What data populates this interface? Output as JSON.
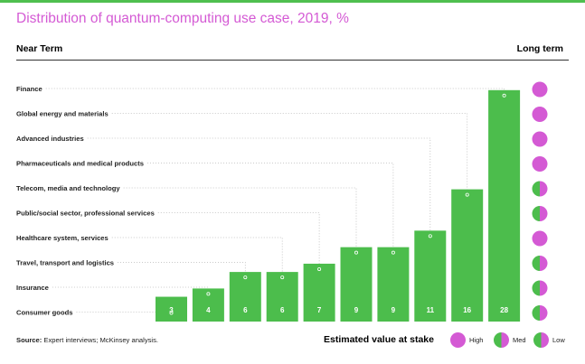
{
  "title": "Distribution of quantum-computing use case, 2019, %",
  "header": {
    "left": "Near Term",
    "right": "Long term"
  },
  "colors": {
    "bar": "#4cbd4c",
    "accent": "#d45ad4",
    "high": "#d45ad4",
    "green": "#4cbd4c"
  },
  "source": {
    "label": "Source:",
    "text": "Expert interviews; McKinsey analysis."
  },
  "legend": {
    "title": "Estimated value at stake",
    "items": [
      {
        "label": "High",
        "value": "high"
      },
      {
        "label": "Med",
        "value": "med"
      },
      {
        "label": "Low",
        "value": "low"
      }
    ]
  },
  "chart_data": {
    "type": "bar",
    "categories": [
      "Finance",
      "Global energy and materials",
      "Advanced industries",
      "Pharmaceuticals and medical products",
      "Telecom, media and technology",
      "Public/social sector, professional services",
      "Healthcare system, services",
      "Travel, transport and logistics",
      "Insurance",
      "Consumer goods"
    ],
    "values": [
      28,
      16,
      11,
      9,
      9,
      7,
      6,
      6,
      4,
      3
    ],
    "long_term_value": [
      "high",
      "high",
      "high",
      "high",
      "med",
      "med",
      "high",
      "med",
      "med",
      "med"
    ],
    "title": "Distribution of quantum-computing use case, 2019, %",
    "xlabel": "",
    "ylabel": ""
  }
}
